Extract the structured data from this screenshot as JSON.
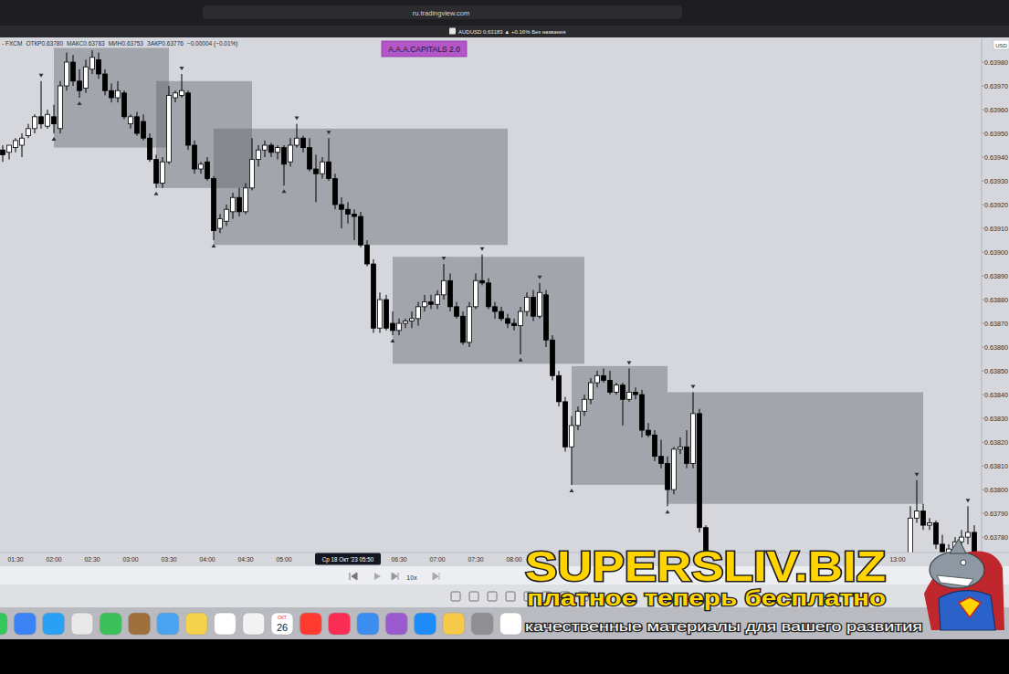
{
  "browser": {
    "url": "ru.tradingview.com",
    "tab_title": "AUDUSD 0.63183 ▲ +0.16% Без названия"
  },
  "header": {
    "symbol": "- FXCM",
    "items": [
      "ОТКР0.63780",
      "МАКС0.63783",
      "МИН0.63753",
      "ЗАКР0.63776",
      "−0.00004 (−0.01%)"
    ]
  },
  "indicator_label": "A.A.A.CAPITALS 2.0",
  "currency": "USD",
  "crosshair": {
    "label": "Ср 18 Окт '23  05:50",
    "index": 54
  },
  "replay": {
    "speed": "10x"
  },
  "dock": {
    "month": "ОКТ",
    "day": "26"
  },
  "watermark": {
    "title": "SUPERSLIV.BIZ",
    "subtitle": "платное теперь бесплатно",
    "tagline": "качественные материалы для вашего развития"
  },
  "chart_data": {
    "type": "candlestick",
    "grid": false,
    "ylim": [
      0.637735,
      0.6399
    ],
    "yticks": [
      {
        "value": 0.6378,
        "label": "0.63780"
      },
      {
        "value": 0.6379,
        "label": "0.63790"
      },
      {
        "value": 0.638,
        "label": "0.63800"
      },
      {
        "value": 0.6381,
        "label": "0.63810"
      },
      {
        "value": 0.6382,
        "label": "0.63820"
      },
      {
        "value": 0.6383,
        "label": "0.63830"
      },
      {
        "value": 0.6384,
        "label": "0.63840"
      },
      {
        "value": 0.6385,
        "label": "0.63850"
      },
      {
        "value": 0.6386,
        "label": "0.63860"
      },
      {
        "value": 0.6387,
        "label": "0.63870"
      },
      {
        "value": 0.6388,
        "label": "0.63880"
      },
      {
        "value": 0.6389,
        "label": "0.63890"
      },
      {
        "value": 0.639,
        "label": "0.63900"
      },
      {
        "value": 0.6391,
        "label": "0.63910"
      },
      {
        "value": 0.6392,
        "label": "0.63920"
      },
      {
        "value": 0.6393,
        "label": "0.63930"
      },
      {
        "value": 0.6394,
        "label": "0.63940"
      },
      {
        "value": 0.6395,
        "label": "0.63950"
      },
      {
        "value": 0.6396,
        "label": "0.63960"
      },
      {
        "value": 0.6397,
        "label": "0.63970"
      },
      {
        "value": 0.6398,
        "label": "0.63980"
      }
    ],
    "categories": [
      null,
      null,
      "01:30",
      null,
      null,
      null,
      null,
      null,
      "02:00",
      null,
      null,
      null,
      null,
      null,
      "02:30",
      null,
      null,
      null,
      null,
      null,
      "03:00",
      null,
      null,
      null,
      null,
      null,
      "03:30",
      null,
      null,
      null,
      null,
      null,
      "04:00",
      null,
      null,
      null,
      null,
      null,
      "04:30",
      null,
      null,
      null,
      null,
      null,
      "05:00",
      null,
      null,
      null,
      null,
      null,
      null,
      null,
      null,
      null,
      null,
      null,
      null,
      null,
      null,
      null,
      null,
      null,
      "06:30",
      null,
      null,
      null,
      null,
      null,
      "07:00",
      null,
      null,
      null,
      null,
      null,
      "07:30",
      null,
      null,
      null,
      null,
      null,
      "08:00",
      null,
      null,
      null,
      null,
      null,
      null,
      null,
      null,
      null,
      null,
      null,
      null,
      null,
      null,
      null,
      null,
      null,
      null,
      null,
      null,
      null,
      null,
      null,
      null,
      null,
      null,
      null,
      null,
      null,
      null,
      null,
      null,
      null,
      null,
      null,
      null,
      null,
      null,
      null,
      null,
      null,
      null,
      null,
      null,
      null,
      null,
      null,
      null,
      null,
      null,
      null,
      null,
      null,
      null,
      null,
      null,
      null,
      null,
      null,
      "13:00",
      null,
      null,
      null,
      null,
      null,
      null,
      null,
      null,
      null,
      null,
      null,
      null
    ],
    "open": [
      0.63943,
      0.63942,
      0.63944,
      0.63945,
      0.63949,
      0.63952,
      0.63957,
      0.63953,
      0.63957,
      0.63952,
      0.6397,
      0.6398,
      0.63972,
      0.63969,
      0.63977,
      0.63981,
      0.63975,
      0.63968,
      0.63965,
      0.63967,
      0.63954,
      0.63957,
      0.63955,
      0.63948,
      0.63939,
      0.63929,
      0.63938,
      0.63965,
      0.63966,
      0.63967,
      0.63945,
      0.63935,
      0.63938,
      0.63931,
      0.6391,
      0.63913,
      0.63917,
      0.63923,
      0.63917,
      0.63927,
      0.63939,
      0.63943,
      0.63945,
      0.63942,
      0.63944,
      0.63938,
      0.63945,
      0.63948,
      0.63944,
      0.63935,
      0.63933,
      0.63938,
      0.63931,
      0.6392,
      0.63918,
      0.63916,
      0.63915,
      0.63903,
      0.63895,
      0.63868,
      0.6388,
      0.6387,
      0.63867,
      0.6387,
      0.63871,
      0.63872,
      0.63877,
      0.63879,
      0.63878,
      0.63882,
      0.63888,
      0.63877,
      0.63873,
      0.63862,
      0.63877,
      0.63888,
      0.63887,
      0.63877,
      0.63875,
      0.63872,
      0.6387,
      0.63869,
      0.63875,
      0.63881,
      0.63873,
      0.63882,
      0.63863,
      0.63848,
      0.63837,
      0.63818,
      0.63827,
      0.63833,
      0.63838,
      0.63845,
      0.63848,
      0.63846,
      0.63841,
      0.63844,
      0.63838,
      0.63841,
      0.6384,
      0.63825,
      0.63823,
      0.63814,
      0.63811,
      0.638,
      0.63817,
      0.63818,
      0.63811,
      0.63832,
      0.63784,
      null,
      null,
      null,
      null,
      null,
      null,
      null,
      null,
      null,
      null,
      null,
      null,
      null,
      null,
      null,
      null,
      null,
      null,
      null,
      null,
      null,
      null,
      null,
      null,
      null,
      null,
      null,
      null,
      null,
      null,
      null,
      0.63771,
      0.63788,
      0.63791,
      0.63785,
      0.63786,
      0.63777,
      0.63773,
      0.63775,
      0.63778,
      0.6378,
      0.63782
    ],
    "high": [
      0.63945,
      0.63945,
      0.63948,
      0.6395,
      0.63954,
      0.63958,
      0.63972,
      0.6396,
      0.63962,
      0.63972,
      0.63984,
      0.63983,
      0.63977,
      0.63981,
      0.63985,
      0.63984,
      0.63977,
      0.63971,
      0.63972,
      0.63968,
      0.63958,
      0.63959,
      0.63958,
      0.6395,
      0.63941,
      0.6394,
      0.6397,
      0.63968,
      0.63975,
      0.63968,
      0.63947,
      0.63938,
      0.6394,
      0.63932,
      0.63916,
      0.6392,
      0.63925,
      0.63927,
      0.63929,
      0.63948,
      0.63945,
      0.63947,
      0.63946,
      0.63945,
      0.63945,
      0.63948,
      0.63954,
      0.63949,
      0.63948,
      0.63941,
      0.6394,
      0.63948,
      0.63933,
      0.63923,
      0.63921,
      0.63918,
      0.63917,
      0.63905,
      0.63897,
      0.63883,
      0.63882,
      0.63875,
      0.63872,
      0.63872,
      0.63875,
      0.63879,
      0.63882,
      0.63882,
      0.63884,
      0.63895,
      0.63891,
      0.63879,
      0.63875,
      0.63879,
      0.63891,
      0.63899,
      0.63889,
      0.63879,
      0.63877,
      0.63874,
      0.63872,
      0.63877,
      0.63883,
      0.63884,
      0.63887,
      0.63884,
      0.63865,
      0.6385,
      0.63839,
      0.63831,
      0.63835,
      0.6384,
      0.63847,
      0.6385,
      0.63851,
      0.6385,
      0.63845,
      0.63845,
      0.63851,
      0.63843,
      0.63842,
      0.63828,
      0.63825,
      0.63821,
      0.63814,
      0.63818,
      0.63822,
      0.63825,
      0.63841,
      0.63834,
      0.63785,
      null,
      null,
      null,
      null,
      null,
      null,
      null,
      null,
      null,
      null,
      null,
      null,
      null,
      null,
      null,
      null,
      null,
      null,
      null,
      null,
      null,
      null,
      null,
      null,
      null,
      null,
      null,
      null,
      null,
      null,
      null,
      0.63793,
      0.63804,
      0.63794,
      0.63788,
      0.63787,
      0.63781,
      0.63777,
      0.6378,
      0.63783,
      0.63793,
      0.63785
    ],
    "low": [
      0.63938,
      0.63939,
      0.63942,
      0.6394,
      0.63948,
      0.6395,
      0.63952,
      0.63952,
      0.6395,
      0.6395,
      0.63968,
      0.6397,
      0.63965,
      0.63967,
      0.63975,
      0.63973,
      0.63966,
      0.63963,
      0.63963,
      0.63956,
      0.63952,
      0.63949,
      0.63947,
      0.63938,
      0.63927,
      0.63927,
      0.63937,
      0.63963,
      0.63965,
      0.63943,
      0.63933,
      0.63933,
      0.6393,
      0.63905,
      0.63908,
      0.63911,
      0.63914,
      0.63915,
      0.63916,
      0.63926,
      0.63936,
      0.6394,
      0.6394,
      0.63939,
      0.63928,
      0.63936,
      0.63944,
      0.63942,
      0.63934,
      0.63921,
      0.63931,
      0.6393,
      0.63918,
      0.6391,
      0.63912,
      0.63905,
      0.63902,
      0.63894,
      0.63866,
      0.63866,
      0.63867,
      0.63865,
      0.63865,
      0.63868,
      0.63868,
      0.63869,
      0.63875,
      0.63876,
      0.63876,
      0.6388,
      0.63875,
      0.63872,
      0.63861,
      0.6386,
      0.63876,
      0.63886,
      0.63876,
      0.63872,
      0.63871,
      0.63868,
      0.63867,
      0.63857,
      0.63873,
      0.63871,
      0.63872,
      0.6386,
      0.63846,
      0.63835,
      0.63816,
      0.63802,
      0.63825,
      0.63831,
      0.63836,
      0.63843,
      0.63845,
      0.6384,
      0.6384,
      0.63827,
      0.63837,
      0.63838,
      0.63822,
      0.63822,
      0.63812,
      0.63809,
      0.63793,
      0.63798,
      0.63815,
      0.63809,
      0.63809,
      0.63782,
      0.63768,
      null,
      null,
      null,
      null,
      null,
      null,
      null,
      null,
      null,
      null,
      null,
      null,
      null,
      null,
      null,
      null,
      null,
      null,
      null,
      null,
      null,
      null,
      null,
      null,
      null,
      null,
      null,
      null,
      null,
      null,
      null,
      0.63768,
      0.63786,
      0.63783,
      0.63783,
      0.63775,
      0.63771,
      0.63771,
      0.63772,
      0.63775,
      0.63777,
      0.63768
    ],
    "close": [
      0.63941,
      0.63945,
      0.63947,
      0.63948,
      0.63952,
      0.63957,
      0.63954,
      0.63958,
      0.63954,
      0.6397,
      0.6398,
      0.63972,
      0.63968,
      0.63978,
      0.63982,
      0.63975,
      0.63968,
      0.63965,
      0.63968,
      0.63957,
      0.63957,
      0.6395,
      0.63948,
      0.63939,
      0.63929,
      0.63938,
      0.63966,
      0.63967,
      0.63968,
      0.63945,
      0.63935,
      0.63937,
      0.63931,
      0.63909,
      0.63914,
      0.63918,
      0.63923,
      0.63917,
      0.63927,
      0.63939,
      0.63943,
      0.63945,
      0.63942,
      0.63944,
      0.63937,
      0.63945,
      0.63948,
      0.63944,
      0.63935,
      0.63933,
      0.63938,
      0.63931,
      0.6392,
      0.63918,
      0.63916,
      0.63915,
      0.63903,
      0.63895,
      0.63868,
      0.6388,
      0.63868,
      0.63867,
      0.6387,
      0.63871,
      0.63872,
      0.63877,
      0.63879,
      0.63878,
      0.63882,
      0.63888,
      0.63877,
      0.63873,
      0.63862,
      0.63877,
      0.63888,
      0.63887,
      0.63877,
      0.63875,
      0.63872,
      0.6387,
      0.63869,
      0.63875,
      0.63881,
      0.63873,
      0.63883,
      0.63863,
      0.63848,
      0.63837,
      0.63818,
      0.63827,
      0.63833,
      0.63838,
      0.63845,
      0.63848,
      0.63846,
      0.63841,
      0.63844,
      0.63838,
      0.63841,
      0.6384,
      0.63825,
      0.63823,
      0.63814,
      0.63811,
      0.638,
      0.63817,
      0.63818,
      0.63811,
      0.63832,
      0.63784,
      0.63771,
      null,
      null,
      null,
      null,
      null,
      null,
      null,
      null,
      null,
      null,
      null,
      null,
      null,
      null,
      null,
      null,
      null,
      null,
      null,
      null,
      null,
      null,
      null,
      null,
      null,
      null,
      null,
      null,
      null,
      null,
      null,
      0.63788,
      0.63791,
      0.63785,
      0.63786,
      0.63777,
      0.63773,
      0.63775,
      0.63778,
      0.6378,
      0.63782,
      0.63771
    ],
    "boxes": [
      {
        "start": 8,
        "end": 26,
        "top": 0.63986,
        "bottom": 0.63944
      },
      {
        "start": 24,
        "end": 39,
        "top": 0.63972,
        "bottom": 0.63927
      },
      {
        "start": 33,
        "end": 79,
        "top": 0.63952,
        "bottom": 0.63903
      },
      {
        "start": 61,
        "end": 91,
        "top": 0.63898,
        "bottom": 0.63853
      },
      {
        "start": 89,
        "end": 104,
        "top": 0.63852,
        "bottom": 0.63802
      },
      {
        "start": 104,
        "end": 144,
        "top": 0.63841,
        "bottom": 0.63794
      }
    ],
    "pivot_highs": [
      6,
      28,
      46,
      51,
      69,
      75,
      84,
      98,
      108,
      143,
      151
    ],
    "pivot_lows": [
      8,
      12,
      24,
      33,
      44,
      61,
      81,
      89,
      104
    ]
  }
}
